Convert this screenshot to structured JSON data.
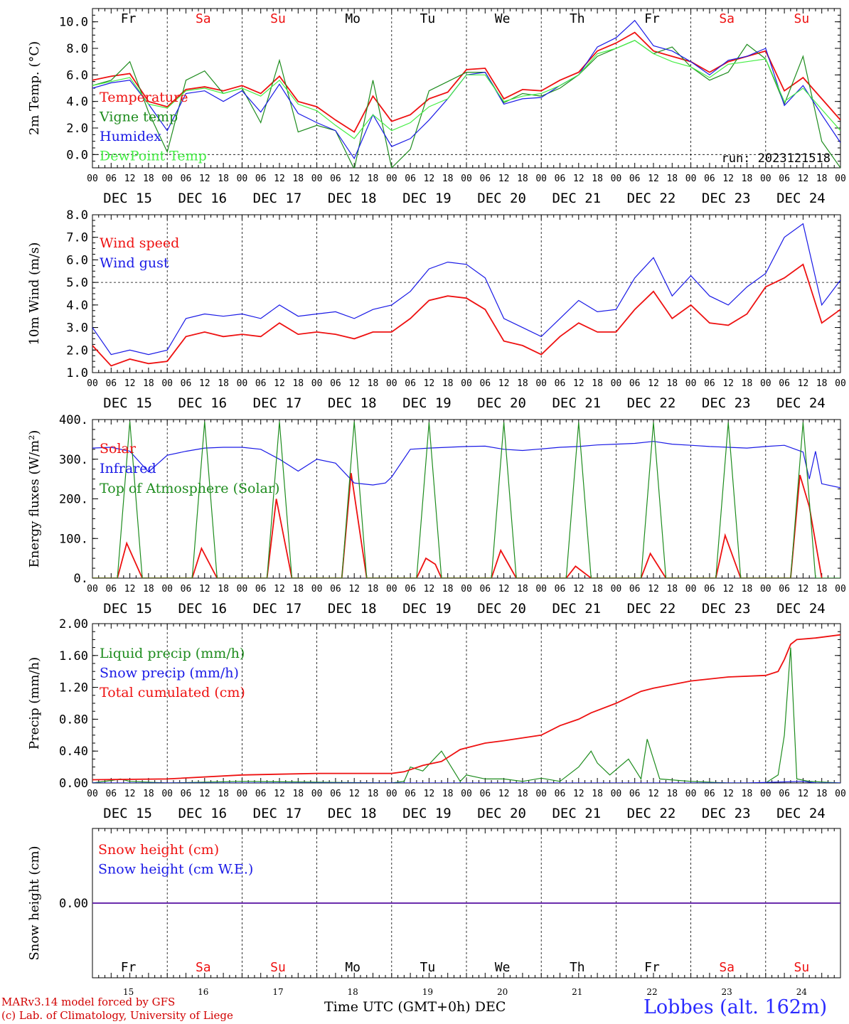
{
  "colors": {
    "red": "#ee1111",
    "green": "#1e8c1e",
    "blue": "#1a1ae6",
    "lightgreen": "#44ee44",
    "purple": "#7a2d9a",
    "weekend": "#ee1111",
    "weekday": "#000000"
  },
  "days": [
    {
      "abbr": "Fr",
      "date": "DEC 15",
      "num": "15",
      "weekend": false
    },
    {
      "abbr": "Sa",
      "date": "DEC 16",
      "num": "16",
      "weekend": true
    },
    {
      "abbr": "Su",
      "date": "DEC 17",
      "num": "17",
      "weekend": true
    },
    {
      "abbr": "Mo",
      "date": "DEC 18",
      "num": "18",
      "weekend": false
    },
    {
      "abbr": "Tu",
      "date": "DEC 19",
      "num": "19",
      "weekend": false
    },
    {
      "abbr": "We",
      "date": "DEC 20",
      "num": "20",
      "weekend": false
    },
    {
      "abbr": "Th",
      "date": "DEC 21",
      "num": "21",
      "weekend": false
    },
    {
      "abbr": "Fr",
      "date": "DEC 22",
      "num": "22",
      "weekend": false
    },
    {
      "abbr": "Sa",
      "date": "DEC 23",
      "num": "23",
      "weekend": true
    },
    {
      "abbr": "Su",
      "date": "DEC 24",
      "num": "24",
      "weekend": true
    }
  ],
  "hour_ticks": [
    "00",
    "06",
    "12",
    "18"
  ],
  "run_label": "run: 2023121518",
  "footer": {
    "model_line": "MARv3.14 model forced by GFS",
    "credit_line": "(c) Lab. of Climatology, University of Liege",
    "xlabel": "Time UTC (GMT+0h)",
    "month": "DEC",
    "station": "Lobbes (alt. 162m)"
  },
  "chart_data": [
    {
      "type": "line",
      "ylabel": "2m Temp. (°C)",
      "ylim": [
        -1.0,
        11.0
      ],
      "yticks": [
        0.0,
        2.0,
        4.0,
        6.0,
        8.0,
        10.0
      ],
      "ytick_labels": [
        "0.0",
        "2.0",
        "4.0",
        "6.0",
        "8.0",
        "10.0"
      ],
      "hline": [
        0.0
      ],
      "x_unit": "hours since DEC 15 00 UTC",
      "x": [
        0,
        6,
        12,
        18,
        24,
        30,
        36,
        42,
        48,
        54,
        60,
        66,
        72,
        78,
        84,
        90,
        96,
        102,
        108,
        114,
        120,
        126,
        132,
        138,
        144,
        150,
        156,
        162,
        168,
        174,
        180,
        186,
        192,
        198,
        204,
        210,
        216,
        222,
        228,
        234,
        240
      ],
      "series": [
        {
          "name": "Temperature",
          "color": "red",
          "values": [
            5.6,
            5.9,
            6.1,
            4.0,
            3.6,
            4.9,
            5.1,
            4.8,
            5.2,
            4.6,
            5.9,
            4.0,
            3.6,
            2.6,
            1.7,
            4.4,
            2.5,
            3.0,
            4.2,
            4.7,
            6.4,
            6.5,
            4.2,
            4.9,
            4.8,
            5.6,
            6.2,
            7.8,
            8.4,
            9.2,
            7.8,
            7.4,
            7.0,
            6.2,
            7.0,
            7.4,
            7.8,
            4.8,
            5.8,
            4.2,
            2.6
          ]
        },
        {
          "name": "Vigne temp",
          "color": "green",
          "values": [
            5.2,
            5.6,
            7.0,
            3.2,
            0.2,
            5.6,
            6.3,
            4.6,
            5.0,
            2.4,
            7.1,
            1.7,
            2.2,
            1.8,
            -1.1,
            5.6,
            -1.0,
            0.4,
            4.8,
            5.5,
            6.2,
            6.2,
            3.9,
            4.6,
            4.4,
            5.0,
            6.0,
            7.4,
            8.0,
            8.6,
            7.6,
            8.1,
            6.6,
            5.6,
            6.2,
            8.3,
            7.2,
            3.8,
            7.4,
            1.0,
            -1.0
          ]
        },
        {
          "name": "Humidex",
          "color": "blue",
          "values": [
            5.0,
            5.4,
            5.6,
            3.8,
            1.8,
            4.6,
            4.8,
            4.0,
            4.8,
            3.2,
            5.3,
            3.1,
            2.4,
            1.8,
            -0.3,
            3.0,
            0.6,
            1.2,
            2.6,
            4.2,
            6.0,
            6.2,
            3.8,
            4.2,
            4.3,
            5.2,
            6.0,
            8.1,
            8.8,
            10.1,
            8.2,
            7.8,
            7.0,
            6.0,
            7.1,
            7.4,
            8.0,
            3.7,
            5.2,
            3.0,
            0.9
          ]
        },
        {
          "name": "DewPoint Temp",
          "color": "lightgreen",
          "values": [
            5.2,
            5.5,
            5.8,
            3.8,
            3.5,
            4.8,
            5.0,
            4.6,
            5.0,
            4.4,
            5.6,
            3.8,
            3.3,
            2.2,
            1.2,
            3.0,
            1.8,
            2.4,
            3.6,
            4.2,
            6.0,
            6.0,
            4.0,
            4.4,
            4.6,
            5.2,
            6.0,
            7.6,
            8.0,
            8.6,
            7.6,
            7.0,
            6.6,
            5.8,
            6.8,
            7.0,
            7.2,
            4.0,
            5.0,
            3.4,
            1.8
          ]
        }
      ]
    },
    {
      "type": "line",
      "ylabel": "10m Wind (m/s)",
      "ylim": [
        1.0,
        8.0
      ],
      "yticks": [
        1.0,
        2.0,
        3.0,
        4.0,
        5.0,
        6.0,
        7.0,
        8.0
      ],
      "ytick_labels": [
        "1.0",
        "2.0",
        "3.0",
        "4.0",
        "5.0",
        "6.0",
        "7.0",
        "8.0"
      ],
      "hline": [
        5.0
      ],
      "x_unit": "hours since DEC 15 00 UTC",
      "x": [
        0,
        6,
        12,
        18,
        24,
        30,
        36,
        42,
        48,
        54,
        60,
        66,
        72,
        78,
        84,
        90,
        96,
        102,
        108,
        114,
        120,
        126,
        132,
        138,
        144,
        150,
        156,
        162,
        168,
        174,
        180,
        186,
        192,
        198,
        204,
        210,
        216,
        222,
        228,
        234,
        240
      ],
      "series": [
        {
          "name": "Wind speed",
          "color": "red",
          "values": [
            2.2,
            1.3,
            1.6,
            1.4,
            1.5,
            2.6,
            2.8,
            2.6,
            2.7,
            2.6,
            3.2,
            2.7,
            2.8,
            2.7,
            2.5,
            2.8,
            2.8,
            3.4,
            4.2,
            4.4,
            4.3,
            3.8,
            2.4,
            2.2,
            1.8,
            2.6,
            3.2,
            2.8,
            2.8,
            3.8,
            4.6,
            3.4,
            4.0,
            3.2,
            3.1,
            3.6,
            4.8,
            5.2,
            5.8,
            3.2,
            3.8
          ]
        },
        {
          "name": "Wind gust",
          "color": "blue",
          "values": [
            3.0,
            1.8,
            2.0,
            1.8,
            2.0,
            3.4,
            3.6,
            3.5,
            3.6,
            3.4,
            4.0,
            3.5,
            3.6,
            3.7,
            3.4,
            3.8,
            4.0,
            4.6,
            5.6,
            5.9,
            5.8,
            5.2,
            3.4,
            3.0,
            2.6,
            3.4,
            4.2,
            3.7,
            3.8,
            5.2,
            6.1,
            4.4,
            5.3,
            4.4,
            4.0,
            4.8,
            5.4,
            7.0,
            7.6,
            4.0,
            5.1
          ]
        }
      ]
    },
    {
      "type": "line",
      "ylabel": "Energy fluxes (W/m²)",
      "ylim": [
        0,
        400
      ],
      "yticks": [
        0,
        100,
        200,
        300,
        400
      ],
      "ytick_labels": [
        "0.",
        "100.",
        "200.",
        "300.",
        "400."
      ],
      "x_unit": "hours since DEC 15 00 UTC",
      "series": [
        {
          "name": "Solar",
          "color": "red",
          "x": [
            0,
            8,
            11,
            16,
            32,
            35,
            40,
            56,
            59,
            64,
            80,
            83,
            88,
            104,
            107,
            110,
            112,
            128,
            131,
            136,
            152,
            155,
            160,
            176,
            179,
            184,
            200,
            203,
            208,
            224,
            227,
            230,
            234
          ],
          "values": [
            0,
            0,
            88,
            0,
            0,
            75,
            0,
            0,
            200,
            0,
            0,
            265,
            0,
            0,
            50,
            35,
            0,
            0,
            70,
            0,
            0,
            30,
            0,
            0,
            62,
            0,
            0,
            108,
            0,
            0,
            260,
            180,
            0
          ]
        },
        {
          "name": "Infrared",
          "color": "blue",
          "x": [
            0,
            6,
            12,
            18,
            24,
            30,
            36,
            42,
            48,
            54,
            60,
            66,
            72,
            78,
            84,
            90,
            94,
            96,
            102,
            108,
            114,
            120,
            126,
            132,
            138,
            144,
            150,
            156,
            162,
            168,
            174,
            180,
            186,
            192,
            198,
            204,
            210,
            216,
            222,
            228,
            230,
            232,
            234,
            240
          ],
          "values": [
            328,
            330,
            320,
            268,
            310,
            320,
            328,
            330,
            330,
            325,
            300,
            270,
            300,
            290,
            240,
            235,
            240,
            255,
            325,
            328,
            330,
            332,
            333,
            325,
            322,
            326,
            330,
            332,
            336,
            338,
            340,
            345,
            338,
            335,
            332,
            330,
            328,
            332,
            335,
            318,
            250,
            320,
            238,
            228
          ]
        },
        {
          "name": "Top of Atmosphere (Solar)",
          "color": "green",
          "x": [
            0,
            8,
            12,
            16,
            24,
            32,
            36,
            40,
            48,
            56,
            60,
            64,
            72,
            80,
            84,
            88,
            96,
            104,
            108,
            112,
            120,
            128,
            132,
            136,
            144,
            152,
            156,
            160,
            168,
            176,
            180,
            184,
            192,
            200,
            204,
            208,
            216,
            224,
            228,
            232,
            240
          ],
          "values": [
            0,
            0,
            395,
            0,
            0,
            0,
            395,
            0,
            0,
            0,
            395,
            0,
            0,
            0,
            395,
            0,
            0,
            0,
            393,
            0,
            0,
            0,
            393,
            0,
            0,
            0,
            393,
            0,
            0,
            0,
            393,
            0,
            0,
            0,
            393,
            0,
            0,
            0,
            393,
            0,
            0
          ]
        }
      ]
    },
    {
      "type": "line",
      "ylabel": "Precip (mm/h)",
      "ylim": [
        0.0,
        2.0
      ],
      "yticks": [
        0.0,
        0.4,
        0.8,
        1.2,
        1.6,
        2.0
      ],
      "ytick_labels": [
        "0.00",
        "0.40",
        "0.80",
        "1.20",
        "1.60",
        "2.00"
      ],
      "x_unit": "hours since DEC 15 00 UTC",
      "series": [
        {
          "name": "Liquid precip (mm/h)",
          "color": "green",
          "x": [
            0,
            6,
            9,
            12,
            24,
            48,
            96,
            100,
            102,
            106,
            112,
            118,
            120,
            126,
            132,
            138,
            144,
            150,
            156,
            160,
            162,
            166,
            172,
            176,
            178,
            182,
            192,
            204,
            216,
            220,
            222,
            224,
            226,
            230,
            240
          ],
          "values": [
            0,
            0.03,
            0.05,
            0.02,
            0,
            0.02,
            0,
            0.02,
            0.2,
            0.15,
            0.4,
            0.02,
            0.1,
            0.05,
            0.05,
            0.02,
            0.06,
            0.02,
            0.2,
            0.4,
            0.25,
            0.1,
            0.3,
            0.05,
            0.55,
            0.05,
            0.02,
            0,
            0,
            0.1,
            0.6,
            1.7,
            0.05,
            0.02,
            0
          ]
        },
        {
          "name": "Snow precip (mm/h)",
          "color": "blue",
          "x": [
            0,
            150,
            210,
            228,
            232,
            240
          ],
          "values": [
            0,
            0,
            0,
            0.02,
            0,
            0
          ]
        },
        {
          "name": "Total cumulated (cm)",
          "color": "red",
          "x": [
            0,
            24,
            48,
            72,
            96,
            100,
            106,
            112,
            118,
            126,
            132,
            144,
            150,
            156,
            160,
            168,
            176,
            180,
            192,
            204,
            216,
            220,
            222,
            224,
            226,
            232,
            240
          ],
          "values": [
            0.04,
            0.05,
            0.1,
            0.12,
            0.12,
            0.14,
            0.22,
            0.27,
            0.42,
            0.5,
            0.53,
            0.6,
            0.72,
            0.8,
            0.88,
            1.0,
            1.15,
            1.19,
            1.28,
            1.33,
            1.35,
            1.4,
            1.55,
            1.74,
            1.8,
            1.82,
            1.86
          ]
        }
      ]
    },
    {
      "type": "line",
      "ylabel": "Snow height (cm)",
      "yticks": [
        0.0
      ],
      "ytick_labels": [
        "0.00"
      ],
      "x_unit": "hours since DEC 15 00 UTC",
      "series": [
        {
          "name": "Snow height (cm)",
          "color": "red",
          "x": [
            0,
            240
          ],
          "values": [
            0,
            0
          ]
        },
        {
          "name": "Snow height (cm W.E.)",
          "color": "blue",
          "x": [
            0,
            240
          ],
          "values": [
            0,
            0
          ]
        }
      ]
    }
  ]
}
